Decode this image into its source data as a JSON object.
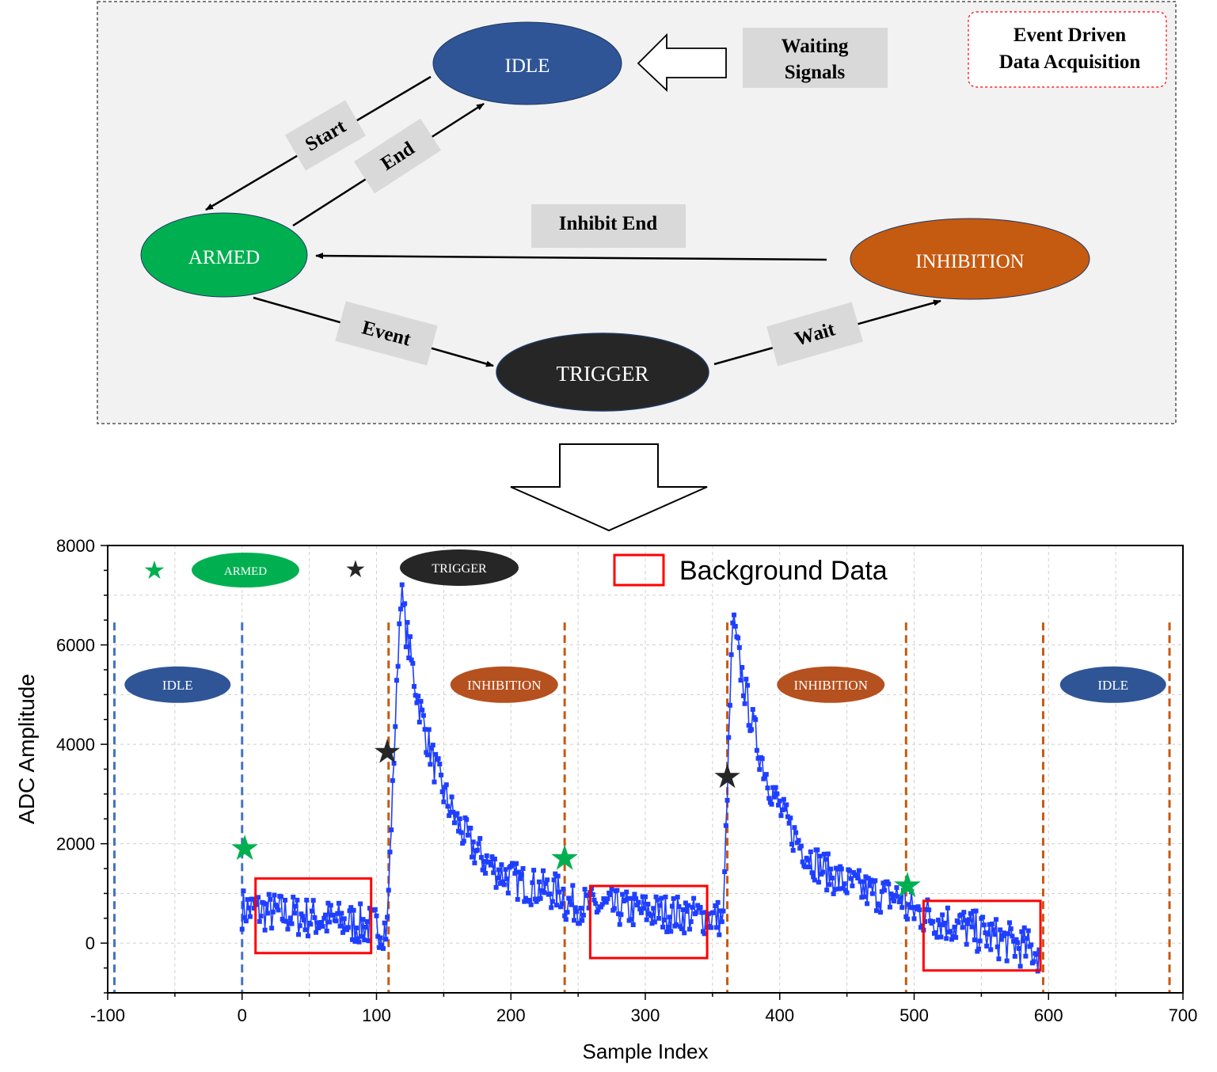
{
  "state_diagram": {
    "title_box": "Event Driven\nData Acquisition",
    "states": {
      "idle": "IDLE",
      "armed": "ARMED",
      "trigger": "TRIGGER",
      "inhibition": "INHIBITION"
    },
    "transitions": {
      "waiting": "Waiting\nSignals",
      "start": "Start",
      "end": "End",
      "inhibit_end": "Inhibit End",
      "event": "Event",
      "wait": "Wait"
    },
    "colors": {
      "idle": "#2f5597",
      "armed": "#00b050",
      "trigger": "#262626",
      "inhibition": "#c55a11",
      "label_bg": "#d9d9d9",
      "panel_bg": "#f2f2f2"
    }
  },
  "chart_data": {
    "type": "scatter",
    "xlabel": "Sample Index",
    "ylabel": "ADC Amplitude",
    "xlim": [
      -100,
      700
    ],
    "ylim": [
      -1000,
      8000
    ],
    "xticks": [
      -100,
      0,
      100,
      200,
      300,
      400,
      500,
      600,
      700
    ],
    "yticks": [
      0,
      2000,
      4000,
      6000,
      8000
    ],
    "grid": true,
    "series_color": "#1f3fff",
    "legend": {
      "armed_label": "ARMED",
      "trigger_label": "TRIGGER",
      "background_label": "Background Data"
    },
    "phase_labels": [
      {
        "text": "IDLE",
        "x": -48,
        "y": 5200,
        "color": "#2f5597"
      },
      {
        "text": "INHIBITION",
        "x": 195,
        "y": 5200,
        "color": "#b5501f"
      },
      {
        "text": "INHIBITION",
        "x": 438,
        "y": 5200,
        "color": "#b5501f"
      },
      {
        "text": "IDLE",
        "x": 648,
        "y": 5200,
        "color": "#2f5597"
      }
    ],
    "boundaries": [
      {
        "x": -95,
        "color": "#4472c4"
      },
      {
        "x": 0,
        "color": "#4472c4"
      },
      {
        "x": 109,
        "color": "#c55a11"
      },
      {
        "x": 240,
        "color": "#c55a11"
      },
      {
        "x": 361,
        "color": "#c55a11"
      },
      {
        "x": 494,
        "color": "#c55a11"
      },
      {
        "x": 596,
        "color": "#c55a11"
      },
      {
        "x": 690,
        "color": "#c55a11"
      }
    ],
    "armed_markers": [
      [
        2,
        1900
      ],
      [
        240,
        1700
      ],
      [
        495,
        1150
      ]
    ],
    "trigger_markers": [
      [
        108,
        3850
      ],
      [
        361,
        3350
      ]
    ],
    "background_boxes": [
      {
        "x": [
          10,
          96
        ],
        "y": [
          -200,
          1300
        ]
      },
      {
        "x": [
          259,
          346
        ],
        "y": [
          -300,
          1150
        ]
      },
      {
        "x": [
          507,
          594
        ],
        "y": [
          -550,
          850
        ]
      }
    ],
    "segments": [
      {
        "x_start": 0,
        "x_end": 108,
        "level": 700,
        "decay_to": 300,
        "noise": 420
      },
      {
        "x_start": 108,
        "x_end": 118,
        "rise_from": 400,
        "peak": 7100
      },
      {
        "x_start": 118,
        "x_end": 240,
        "peak": 7100,
        "tail": 900,
        "tau": 30,
        "noise": 380
      },
      {
        "x_start": 240,
        "x_end": 358,
        "level": 800,
        "decay_to": 500,
        "noise": 380
      },
      {
        "x_start": 358,
        "x_end": 365,
        "rise_from": 500,
        "peak": 6500
      },
      {
        "x_start": 365,
        "x_end": 494,
        "peak": 6500,
        "tail": 800,
        "tau": 32,
        "noise": 380
      },
      {
        "x_start": 494,
        "x_end": 594,
        "level": 700,
        "decay_to": -200,
        "noise": 420
      }
    ]
  }
}
